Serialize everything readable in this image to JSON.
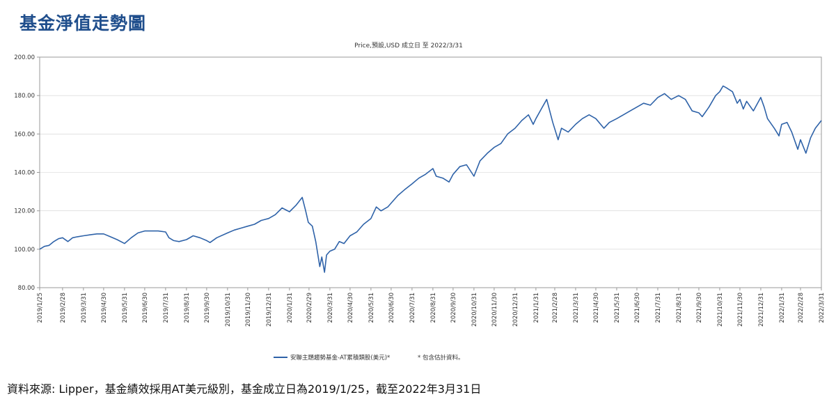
{
  "page": {
    "title": "基金淨值走勢圖",
    "footer_note": "資料來源: Lipper，基金績效採用AT美元級別，基金成立日為2019/1/25，截至2022年3月31日"
  },
  "colors": {
    "title": "#1f4e8c",
    "series": "#2e62a8",
    "axis": "#999999",
    "grid": "#d0d0d0"
  },
  "chart_data": {
    "type": "line",
    "title": "Price,預設,USD 成立日 至 2022/3/31",
    "xlabel": "",
    "ylabel": "",
    "ylim": [
      80,
      200
    ],
    "y_ticks": [
      "80.00",
      "100.00",
      "120.00",
      "140.00",
      "160.00",
      "180.00",
      "200.00"
    ],
    "x_range": [
      "2019-01-25",
      "2022-03-31"
    ],
    "x_ticks": [
      "2019/1/25",
      "2019/2/28",
      "2019/3/31",
      "2019/4/30",
      "2019/5/31",
      "2019/6/30",
      "2019/7/31",
      "2019/8/31",
      "2019/9/30",
      "2019/10/31",
      "2019/11/30",
      "2019/12/31",
      "2020/1/31",
      "2020/2/29",
      "2020/3/31",
      "2020/4/30",
      "2020/5/31",
      "2020/6/30",
      "2020/7/31",
      "2020/8/31",
      "2020/9/30",
      "2020/10/31",
      "2020/11/30",
      "2020/12/31",
      "2021/1/31",
      "2021/2/28",
      "2021/3/31",
      "2021/4/30",
      "2021/5/31",
      "2021/6/30",
      "2021/7/31",
      "2021/8/31",
      "2021/9/30",
      "2021/10/31",
      "2021/11/30",
      "2021/12/31",
      "2022/1/31",
      "2022/2/28",
      "2022/3/31"
    ],
    "grid": "horizontal",
    "legend": {
      "position": "bottom-center",
      "note": "* 包含估計資料。"
    },
    "series": [
      {
        "name": "安聯主題趨勢基金-AT累積類股(美元)*",
        "points": [
          [
            "2019-01-25",
            100.0
          ],
          [
            "2019-02-01",
            101.5
          ],
          [
            "2019-02-08",
            102.0
          ],
          [
            "2019-02-15",
            104.0
          ],
          [
            "2019-02-22",
            105.5
          ],
          [
            "2019-02-28",
            106.0
          ],
          [
            "2019-03-08",
            104.0
          ],
          [
            "2019-03-15",
            106.0
          ],
          [
            "2019-03-22",
            106.5
          ],
          [
            "2019-03-31",
            107.0
          ],
          [
            "2019-04-10",
            107.5
          ],
          [
            "2019-04-20",
            108.0
          ],
          [
            "2019-04-30",
            108.0
          ],
          [
            "2019-05-10",
            106.5
          ],
          [
            "2019-05-20",
            105.0
          ],
          [
            "2019-05-31",
            103.0
          ],
          [
            "2019-06-10",
            106.0
          ],
          [
            "2019-06-20",
            108.5
          ],
          [
            "2019-06-30",
            109.5
          ],
          [
            "2019-07-10",
            109.5
          ],
          [
            "2019-07-20",
            109.5
          ],
          [
            "2019-07-31",
            109.0
          ],
          [
            "2019-08-05",
            106.0
          ],
          [
            "2019-08-12",
            104.5
          ],
          [
            "2019-08-20",
            104.0
          ],
          [
            "2019-08-31",
            105.0
          ],
          [
            "2019-09-10",
            107.0
          ],
          [
            "2019-09-20",
            106.0
          ],
          [
            "2019-09-30",
            104.5
          ],
          [
            "2019-10-05",
            103.5
          ],
          [
            "2019-10-15",
            106.0
          ],
          [
            "2019-10-31",
            108.5
          ],
          [
            "2019-11-10",
            110.0
          ],
          [
            "2019-11-20",
            111.0
          ],
          [
            "2019-11-30",
            112.0
          ],
          [
            "2019-12-10",
            113.0
          ],
          [
            "2019-12-20",
            115.0
          ],
          [
            "2019-12-31",
            116.0
          ],
          [
            "2020-01-10",
            118.0
          ],
          [
            "2020-01-20",
            121.5
          ],
          [
            "2020-01-31",
            119.5
          ],
          [
            "2020-02-10",
            123.0
          ],
          [
            "2020-02-19",
            127.0
          ],
          [
            "2020-02-24",
            120.0
          ],
          [
            "2020-02-28",
            114.0
          ],
          [
            "2020-03-05",
            112.0
          ],
          [
            "2020-03-10",
            104.0
          ],
          [
            "2020-03-16",
            91.0
          ],
          [
            "2020-03-19",
            96.0
          ],
          [
            "2020-03-23",
            88.0
          ],
          [
            "2020-03-26",
            97.0
          ],
          [
            "2020-03-31",
            99.0
          ],
          [
            "2020-04-07",
            100.0
          ],
          [
            "2020-04-14",
            104.0
          ],
          [
            "2020-04-21",
            103.0
          ],
          [
            "2020-04-30",
            107.0
          ],
          [
            "2020-05-10",
            109.0
          ],
          [
            "2020-05-20",
            113.0
          ],
          [
            "2020-05-31",
            116.0
          ],
          [
            "2020-06-08",
            122.0
          ],
          [
            "2020-06-15",
            120.0
          ],
          [
            "2020-06-25",
            122.0
          ],
          [
            "2020-06-30",
            124.0
          ],
          [
            "2020-07-10",
            128.0
          ],
          [
            "2020-07-20",
            131.0
          ],
          [
            "2020-07-31",
            134.0
          ],
          [
            "2020-08-10",
            137.0
          ],
          [
            "2020-08-20",
            139.0
          ],
          [
            "2020-08-31",
            142.0
          ],
          [
            "2020-09-05",
            138.0
          ],
          [
            "2020-09-15",
            137.0
          ],
          [
            "2020-09-24",
            135.0
          ],
          [
            "2020-09-30",
            139.0
          ],
          [
            "2020-10-10",
            143.0
          ],
          [
            "2020-10-20",
            144.0
          ],
          [
            "2020-10-31",
            138.0
          ],
          [
            "2020-11-09",
            146.0
          ],
          [
            "2020-11-20",
            150.0
          ],
          [
            "2020-11-30",
            153.0
          ],
          [
            "2020-12-10",
            155.0
          ],
          [
            "2020-12-20",
            160.0
          ],
          [
            "2020-12-31",
            163.0
          ],
          [
            "2021-01-10",
            167.0
          ],
          [
            "2021-01-20",
            170.0
          ],
          [
            "2021-01-27",
            165.0
          ],
          [
            "2021-01-31",
            168.0
          ],
          [
            "2021-02-08",
            173.0
          ],
          [
            "2021-02-16",
            178.0
          ],
          [
            "2021-02-25",
            166.0
          ],
          [
            "2021-03-05",
            157.0
          ],
          [
            "2021-03-10",
            163.0
          ],
          [
            "2021-03-20",
            161.0
          ],
          [
            "2021-03-31",
            165.0
          ],
          [
            "2021-04-10",
            168.0
          ],
          [
            "2021-04-20",
            170.0
          ],
          [
            "2021-04-30",
            168.0
          ],
          [
            "2021-05-12",
            163.0
          ],
          [
            "2021-05-20",
            166.0
          ],
          [
            "2021-05-31",
            168.0
          ],
          [
            "2021-06-10",
            170.0
          ],
          [
            "2021-06-20",
            172.0
          ],
          [
            "2021-06-30",
            174.0
          ],
          [
            "2021-07-10",
            176.0
          ],
          [
            "2021-07-20",
            175.0
          ],
          [
            "2021-07-31",
            179.0
          ],
          [
            "2021-08-10",
            181.0
          ],
          [
            "2021-08-20",
            178.0
          ],
          [
            "2021-08-31",
            180.0
          ],
          [
            "2021-09-10",
            178.0
          ],
          [
            "2021-09-20",
            172.0
          ],
          [
            "2021-09-30",
            171.0
          ],
          [
            "2021-10-05",
            169.0
          ],
          [
            "2021-10-15",
            174.0
          ],
          [
            "2021-10-25",
            180.0
          ],
          [
            "2021-10-31",
            182.0
          ],
          [
            "2021-11-05",
            185.0
          ],
          [
            "2021-11-10",
            184.0
          ],
          [
            "2021-11-19",
            182.0
          ],
          [
            "2021-11-26",
            176.0
          ],
          [
            "2021-11-30",
            178.0
          ],
          [
            "2021-12-05",
            173.0
          ],
          [
            "2021-12-10",
            177.0
          ],
          [
            "2021-12-20",
            172.0
          ],
          [
            "2021-12-31",
            179.0
          ],
          [
            "2022-01-05",
            174.0
          ],
          [
            "2022-01-10",
            168.0
          ],
          [
            "2022-01-20",
            163.0
          ],
          [
            "2022-01-27",
            159.0
          ],
          [
            "2022-01-31",
            165.0
          ],
          [
            "2022-02-08",
            166.0
          ],
          [
            "2022-02-15",
            161.0
          ],
          [
            "2022-02-24",
            152.0
          ],
          [
            "2022-02-28",
            157.0
          ],
          [
            "2022-03-08",
            150.0
          ],
          [
            "2022-03-15",
            158.0
          ],
          [
            "2022-03-22",
            163.0
          ],
          [
            "2022-03-31",
            167.0
          ]
        ]
      }
    ]
  }
}
